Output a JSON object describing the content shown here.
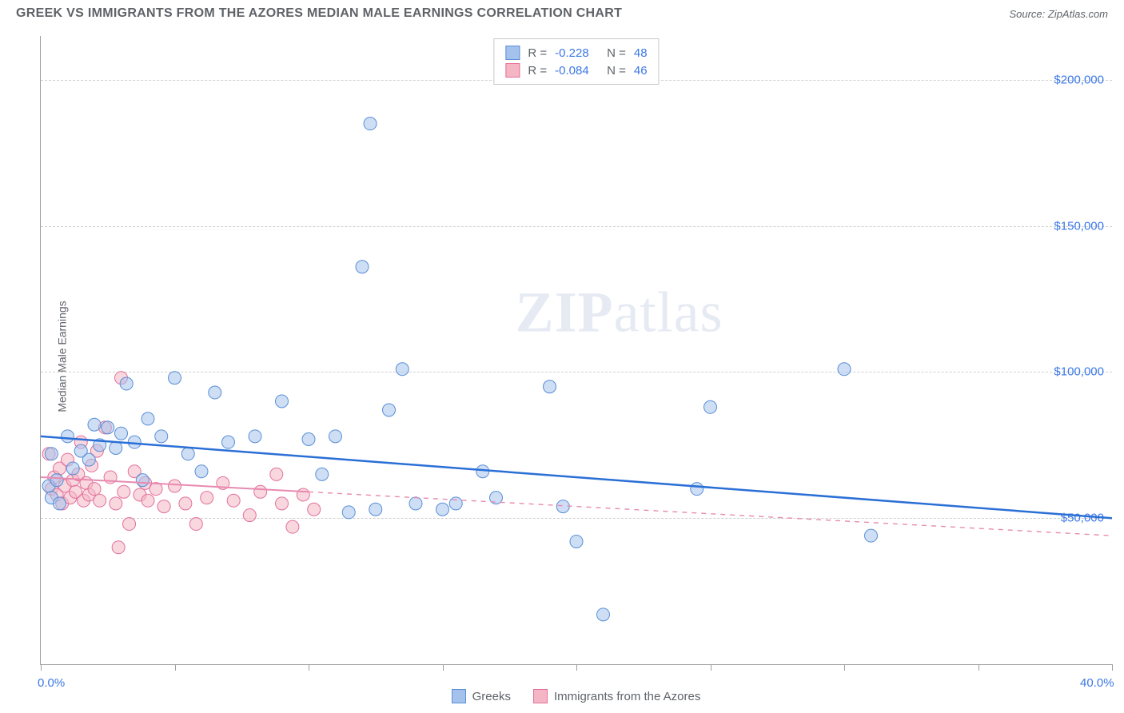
{
  "title": "GREEK VS IMMIGRANTS FROM THE AZORES MEDIAN MALE EARNINGS CORRELATION CHART",
  "source": "Source: ZipAtlas.com",
  "y_axis_label": "Median Male Earnings",
  "watermark": {
    "bold": "ZIP",
    "rest": "atlas"
  },
  "chart": {
    "type": "scatter",
    "background_color": "#ffffff",
    "grid_color": "#d0d0d0",
    "axis_color": "#9e9e9e",
    "xlim": [
      0,
      40
    ],
    "ylim": [
      0,
      215000
    ],
    "x_ticks": [
      0,
      5,
      10,
      15,
      20,
      25,
      30,
      35,
      40
    ],
    "x_tick_labels_shown": {
      "0": "0.0%",
      "40": "40.0%"
    },
    "y_gridlines": [
      50000,
      100000,
      150000,
      200000
    ],
    "y_tick_labels": [
      "$50,000",
      "$100,000",
      "$150,000",
      "$200,000"
    ],
    "marker_radius": 8,
    "marker_opacity": 0.55,
    "tick_label_color": "#3b78e7",
    "label_fontsize": 14,
    "tick_fontsize": 15,
    "series": [
      {
        "name": "Greeks",
        "fill_color": "#a4c2ec",
        "stroke_color": "#5a8fd6",
        "trend": {
          "color": "#2a6fd6",
          "width": 2.5,
          "solid_x_limit": 40,
          "y_at_x0": 78000,
          "y_at_x40": 50000
        },
        "stats": {
          "R": "-0.228",
          "N": "48"
        },
        "points": [
          [
            0.3,
            61000
          ],
          [
            0.4,
            57000
          ],
          [
            0.4,
            72000
          ],
          [
            0.6,
            63000
          ],
          [
            0.7,
            55000
          ],
          [
            1.0,
            78000
          ],
          [
            1.2,
            67000
          ],
          [
            1.5,
            73000
          ],
          [
            1.8,
            70000
          ],
          [
            2.0,
            82000
          ],
          [
            2.2,
            75000
          ],
          [
            2.5,
            81000
          ],
          [
            2.8,
            74000
          ],
          [
            3.0,
            79000
          ],
          [
            3.2,
            96000
          ],
          [
            3.5,
            76000
          ],
          [
            3.8,
            63000
          ],
          [
            4.0,
            84000
          ],
          [
            4.5,
            78000
          ],
          [
            5.0,
            98000
          ],
          [
            5.5,
            72000
          ],
          [
            6.0,
            66000
          ],
          [
            6.5,
            93000
          ],
          [
            7.0,
            76000
          ],
          [
            8.0,
            78000
          ],
          [
            9.0,
            90000
          ],
          [
            10.0,
            77000
          ],
          [
            10.5,
            65000
          ],
          [
            11.0,
            78000
          ],
          [
            11.5,
            52000
          ],
          [
            12.0,
            136000
          ],
          [
            12.3,
            185000
          ],
          [
            12.5,
            53000
          ],
          [
            13.0,
            87000
          ],
          [
            13.5,
            101000
          ],
          [
            14.0,
            55000
          ],
          [
            15.0,
            53000
          ],
          [
            15.5,
            55000
          ],
          [
            16.5,
            66000
          ],
          [
            17.0,
            57000
          ],
          [
            19.0,
            95000
          ],
          [
            19.5,
            54000
          ],
          [
            20.0,
            42000
          ],
          [
            21.0,
            17000
          ],
          [
            24.5,
            60000
          ],
          [
            25.0,
            88000
          ],
          [
            30.0,
            101000
          ],
          [
            31.0,
            44000
          ]
        ]
      },
      {
        "name": "Immigrants from the Azores",
        "fill_color": "#f4b6c5",
        "stroke_color": "#e3709a",
        "trend": {
          "color": "#e88ab0",
          "width": 2,
          "solid_x_limit": 10,
          "y_at_x0": 64000,
          "y_at_x40": 44000
        },
        "stats": {
          "R": "-0.084",
          "N": "46"
        },
        "points": [
          [
            0.3,
            72000
          ],
          [
            0.4,
            60000
          ],
          [
            0.5,
            64000
          ],
          [
            0.6,
            58000
          ],
          [
            0.7,
            67000
          ],
          [
            0.8,
            55000
          ],
          [
            0.9,
            61000
          ],
          [
            1.0,
            70000
          ],
          [
            1.1,
            57000
          ],
          [
            1.2,
            63000
          ],
          [
            1.3,
            59000
          ],
          [
            1.4,
            65000
          ],
          [
            1.5,
            76000
          ],
          [
            1.6,
            56000
          ],
          [
            1.7,
            62000
          ],
          [
            1.8,
            58000
          ],
          [
            1.9,
            68000
          ],
          [
            2.0,
            60000
          ],
          [
            2.1,
            73000
          ],
          [
            2.2,
            56000
          ],
          [
            2.4,
            81000
          ],
          [
            2.6,
            64000
          ],
          [
            2.8,
            55000
          ],
          [
            3.0,
            98000
          ],
          [
            3.1,
            59000
          ],
          [
            3.3,
            48000
          ],
          [
            3.5,
            66000
          ],
          [
            3.7,
            58000
          ],
          [
            3.9,
            62000
          ],
          [
            4.0,
            56000
          ],
          [
            4.3,
            60000
          ],
          [
            4.6,
            54000
          ],
          [
            5.0,
            61000
          ],
          [
            5.4,
            55000
          ],
          [
            5.8,
            48000
          ],
          [
            6.2,
            57000
          ],
          [
            6.8,
            62000
          ],
          [
            7.2,
            56000
          ],
          [
            7.8,
            51000
          ],
          [
            8.2,
            59000
          ],
          [
            8.8,
            65000
          ],
          [
            9.0,
            55000
          ],
          [
            9.4,
            47000
          ],
          [
            9.8,
            58000
          ],
          [
            10.2,
            53000
          ],
          [
            2.9,
            40000
          ]
        ]
      }
    ]
  },
  "stats_box_labels": {
    "R": "R =",
    "N": "N ="
  },
  "bottom_legend": [
    {
      "label": "Greeks",
      "series_index": 0
    },
    {
      "label": "Immigrants from the Azores",
      "series_index": 1
    }
  ]
}
